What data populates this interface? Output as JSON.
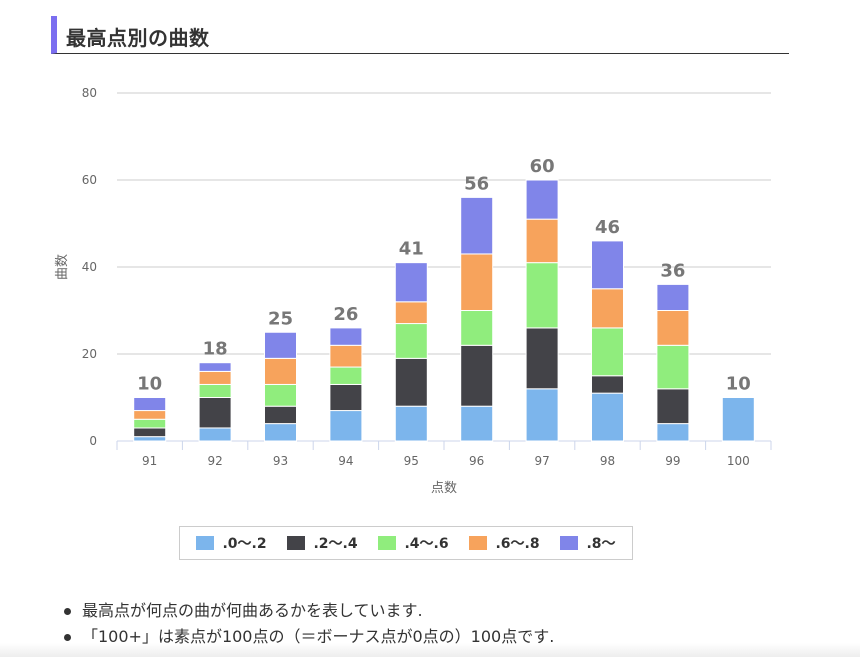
{
  "heading": "最高点別の曲数",
  "chart_data": {
    "type": "bar",
    "stacked": true,
    "categories": [
      "91",
      "92",
      "93",
      "94",
      "95",
      "96",
      "97",
      "98",
      "99",
      "100"
    ],
    "series": [
      {
        "name": ".0〜.2",
        "color": "#7cb5ec",
        "values": [
          1,
          3,
          4,
          7,
          8,
          8,
          12,
          11,
          4,
          10
        ]
      },
      {
        "name": ".2〜.4",
        "color": "#434348",
        "values": [
          2,
          7,
          4,
          6,
          11,
          14,
          14,
          4,
          8,
          0
        ]
      },
      {
        "name": ".4〜.6",
        "color": "#90ed7d",
        "values": [
          2,
          3,
          5,
          4,
          8,
          8,
          15,
          11,
          10,
          0
        ]
      },
      {
        "name": ".6〜.8",
        "color": "#f7a35c",
        "values": [
          2,
          3,
          6,
          5,
          5,
          13,
          10,
          9,
          8,
          0
        ]
      },
      {
        "name": ".8〜",
        "color": "#8085e9",
        "values": [
          3,
          2,
          6,
          4,
          9,
          13,
          9,
          11,
          6,
          0
        ]
      }
    ],
    "totals": [
      10,
      18,
      25,
      26,
      41,
      56,
      60,
      46,
      36,
      10
    ],
    "xlabel": "点数",
    "ylabel": "曲数",
    "ylim": [
      0,
      80
    ],
    "yticks": [
      0,
      20,
      40,
      60,
      80
    ],
    "grid": true,
    "legend_position": "bottom"
  },
  "notes": [
    "最高点が何点の曲が何曲あるかを表しています.",
    "「100+」は素点が100点の（＝ボーナス点が0点の）100点です."
  ]
}
